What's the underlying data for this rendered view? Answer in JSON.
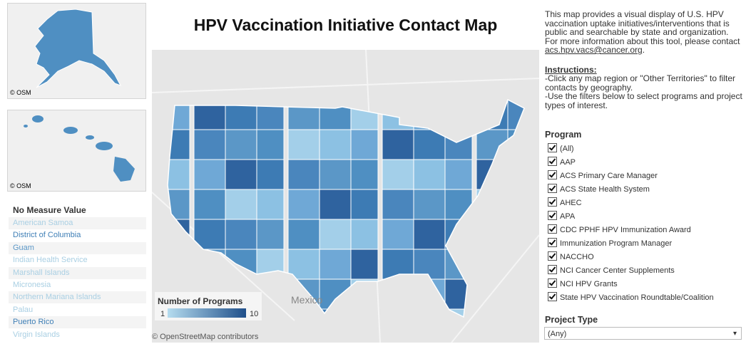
{
  "title": "HPV Vaccination Initiative Contact Map",
  "insets": {
    "alaska_credit": "© OSM",
    "hawaii_credit": "© OSM"
  },
  "territories": {
    "header": "No Measure Value",
    "items": [
      {
        "name": "American Samoa",
        "color": "#a9cfe3"
      },
      {
        "name": "District of Columbia",
        "color": "#3f7fb6"
      },
      {
        "name": "Guam",
        "color": "#5b97c7"
      },
      {
        "name": "Indian Health Service",
        "color": "#a9cfe3"
      },
      {
        "name": "Marshall Islands",
        "color": "#a9cfe3"
      },
      {
        "name": "Micronesia",
        "color": "#a9cfe3"
      },
      {
        "name": "Northern Mariana Islands",
        "color": "#a9cfe3"
      },
      {
        "name": "Palau",
        "color": "#a9cfe3"
      },
      {
        "name": "Puerto Rico",
        "color": "#3f7fb6"
      },
      {
        "name": "Virgin Islands",
        "color": "#a9cfe3"
      }
    ]
  },
  "map": {
    "place_label": "Mexico",
    "attribution": "© OpenStreetMap contributors",
    "legend": {
      "title": "Number of Programs",
      "min": 1,
      "max": 10
    }
  },
  "description": {
    "text": "This map provides a visual display of U.S. HPV vaccination uptake initiatives/interventions that is public and searchable by state and organization. For more information about this tool, please contact ",
    "email": "acs.hpv.vacs@cancer.org",
    "end": "."
  },
  "instructions": {
    "heading": "Instructions:",
    "lines": [
      "-Click any map region or \"Other Territories\" to filter contacts by geography.",
      "-Use the filters below to select programs and project types of interest."
    ]
  },
  "program_filter": {
    "label": "Program",
    "options": [
      "(All)",
      "AAP",
      "ACS Primary Care Manager",
      "ACS State Health System",
      "AHEC",
      "APA",
      "CDC PPHF HPV Immunization Award",
      "Immunization Program Manager",
      "NACCHO",
      "NCI Cancer Center Supplements",
      "NCI HPV Grants",
      "State HPV Vaccination Roundtable/Coalition"
    ]
  },
  "project_type": {
    "label": "Project Type",
    "value": "(Any)"
  }
}
